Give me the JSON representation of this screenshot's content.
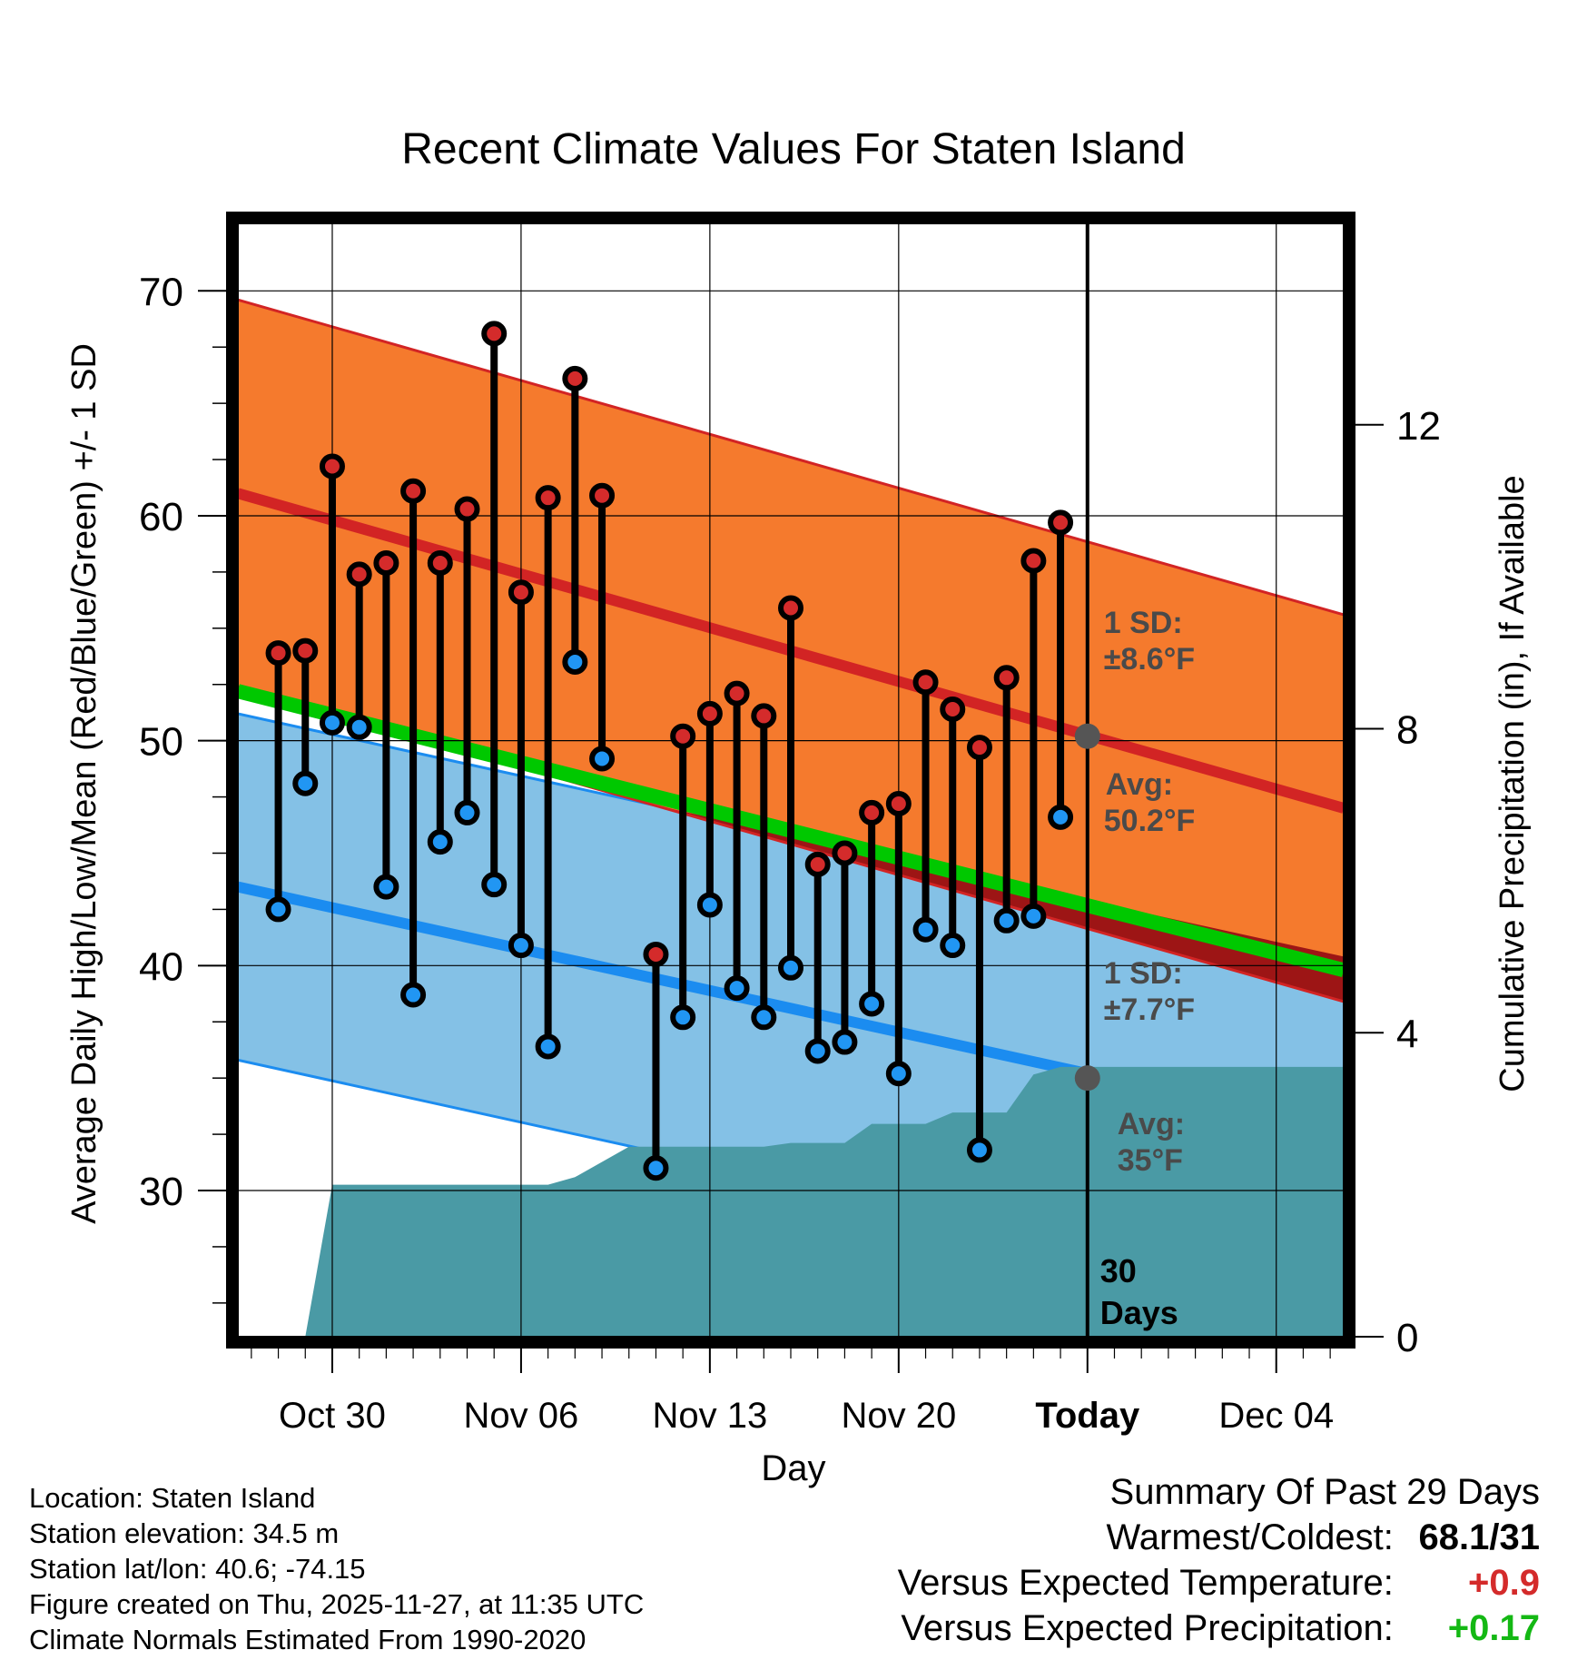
{
  "chart_data": {
    "type": "line",
    "title": "Recent Climate Values For Staten Island",
    "xlabel": "Day",
    "ylabel": "Average Daily High/Low/Mean (Red/Blue/Green) +/- 1 SD",
    "y2label": "Cumulative Precipitation (in), If Available",
    "ylim": [
      23.5,
      73
    ],
    "y_ticks": [
      30,
      40,
      50,
      60,
      70
    ],
    "y2lim": [
      0,
      14.65
    ],
    "y2_ticks": [
      0,
      4,
      8,
      12
    ],
    "x_range": [
      -3.5,
      37.5
    ],
    "x_ticks": [
      {
        "x": 0,
        "label": "Oct 30"
      },
      {
        "x": 7,
        "label": "Nov 06"
      },
      {
        "x": 14,
        "label": "Nov 13"
      },
      {
        "x": 21,
        "label": "Nov 20"
      },
      {
        "x": 28,
        "label": "Today"
      },
      {
        "x": 35,
        "label": "Dec 04"
      }
    ],
    "today_x": 28,
    "normal_high": {
      "start": 61.0,
      "end": 47.0,
      "sd": 8.6,
      "avg_today": 50.2
    },
    "normal_low": {
      "start": 43.5,
      "end": 32.7,
      "sd": 7.7,
      "avg_today": 35
    },
    "normal_mean_start": 52.2,
    "normal_mean_end": 39.8,
    "daily": [
      {
        "x": -2,
        "high": 53.9,
        "low": 42.5
      },
      {
        "x": -1,
        "high": 54.0,
        "low": 48.1
      },
      {
        "x": 0,
        "high": 62.2,
        "low": 50.8
      },
      {
        "x": 1,
        "high": 57.4,
        "low": 50.6
      },
      {
        "x": 2,
        "high": 57.9,
        "low": 43.5
      },
      {
        "x": 3,
        "high": 61.1,
        "low": 38.7
      },
      {
        "x": 4,
        "high": 57.9,
        "low": 45.5
      },
      {
        "x": 5,
        "high": 60.3,
        "low": 46.8
      },
      {
        "x": 6,
        "high": 68.1,
        "low": 43.6
      },
      {
        "x": 7,
        "high": 56.6,
        "low": 40.9
      },
      {
        "x": 8,
        "high": 60.8,
        "low": 36.4
      },
      {
        "x": 9,
        "high": 66.1,
        "low": 53.5
      },
      {
        "x": 10,
        "high": 60.9,
        "low": 49.2
      },
      {
        "x": 12,
        "high": 40.5,
        "low": 31.0
      },
      {
        "x": 13,
        "high": 50.2,
        "low": 37.7
      },
      {
        "x": 14,
        "high": 51.2,
        "low": 42.7
      },
      {
        "x": 15,
        "high": 52.1,
        "low": 39.0
      },
      {
        "x": 16,
        "high": 51.1,
        "low": 37.7
      },
      {
        "x": 17,
        "high": 55.9,
        "low": 39.9
      },
      {
        "x": 18,
        "high": 44.5,
        "low": 36.2
      },
      {
        "x": 19,
        "high": 45.0,
        "low": 36.6
      },
      {
        "x": 20,
        "high": 46.8,
        "low": 38.3
      },
      {
        "x": 21,
        "high": 47.2,
        "low": 35.2
      },
      {
        "x": 22,
        "high": 52.6,
        "low": 41.6
      },
      {
        "x": 23,
        "high": 51.4,
        "low": 40.9
      },
      {
        "x": 24,
        "high": 49.7,
        "low": 31.8
      },
      {
        "x": 25,
        "high": 52.8,
        "low": 42.0
      },
      {
        "x": 26,
        "high": 58.0,
        "low": 42.2
      },
      {
        "x": 27,
        "high": 59.7,
        "low": 46.6
      }
    ],
    "precip_cumulative": [
      {
        "x": -1,
        "y": 0.0
      },
      {
        "x": 0,
        "y": 2.0
      },
      {
        "x": 8,
        "y": 2.0
      },
      {
        "x": 9,
        "y": 2.1
      },
      {
        "x": 11,
        "y": 2.5
      },
      {
        "x": 16,
        "y": 2.5
      },
      {
        "x": 17,
        "y": 2.55
      },
      {
        "x": 19,
        "y": 2.55
      },
      {
        "x": 20,
        "y": 2.8
      },
      {
        "x": 22,
        "y": 2.8
      },
      {
        "x": 23,
        "y": 2.95
      },
      {
        "x": 25,
        "y": 2.95
      },
      {
        "x": 26,
        "y": 3.45
      },
      {
        "x": 27,
        "y": 3.55
      },
      {
        "x": 37.5,
        "y": 3.55
      }
    ]
  },
  "annotations": {
    "high_sd": {
      "line1": "1 SD:",
      "line2": "±8.6°F"
    },
    "high_avg": {
      "line1": "Avg:",
      "line2": "50.2°F"
    },
    "low_sd": {
      "line1": "1 SD:",
      "line2": "±7.7°F"
    },
    "low_avg": {
      "line1": "Avg:",
      "line2": "35°F"
    },
    "window": {
      "line1": "30",
      "line2": "Days"
    }
  },
  "colors": {
    "high_band": "#f57a2d",
    "high_line": "#d22424",
    "high_dot": "#d42b2b",
    "low_band": "#84c1e6",
    "low_line": "#1b8cf0",
    "low_dot": "#2196f3",
    "mean_line": "#00c800",
    "overlap": "#9d1515",
    "precip": "#4a9aa5",
    "annotation": "#4a4a4a",
    "avg_marker": "#555555",
    "positive_temp": "#d42b2b",
    "positive_precip": "#14b814"
  },
  "footer": {
    "location": "Location: Staten Island",
    "elevation": "Station elevation: 34.5 m",
    "latlon": "Station lat/lon: 40.6; -74.15",
    "created": "Figure created on Thu, 2025-11-27, at 11:35 UTC",
    "normals": "Climate Normals Estimated From 1990-2020"
  },
  "summary": {
    "title": "Summary Of Past 29 Days",
    "warm_cold_label": "Warmest/Coldest:",
    "warm_cold_value": "68.1/31",
    "temp_label": "Versus Expected Temperature:",
    "temp_value": "+0.9",
    "precip_label": "Versus Expected Precipitation:",
    "precip_value": "+0.17"
  }
}
